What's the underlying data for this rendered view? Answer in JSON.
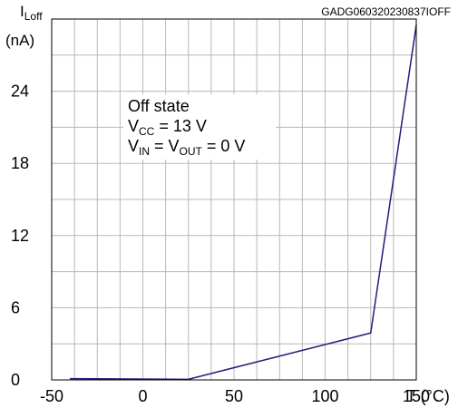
{
  "chart_data": {
    "type": "line",
    "figure_code": "GADG060320230837IOFF",
    "ylabel": {
      "main": "I",
      "sub": "Loff",
      "unit": "(nA)"
    },
    "xlabel": "T (°C)",
    "xlim": [
      -50,
      150
    ],
    "ylim": [
      0,
      30
    ],
    "xticks": [
      -50,
      0,
      50,
      100,
      150
    ],
    "yticks": [
      0,
      6,
      12,
      18,
      24
    ],
    "grid": true,
    "grid_minor_x_step": 12.5,
    "grid_y_step": 3,
    "annotation": {
      "line1": "Off state",
      "line2": {
        "a": "V",
        "a_sub": "CC",
        "b": " = 13 V"
      },
      "line3": {
        "a": "V",
        "a_sub": "IN",
        "b": " = V",
        "b_sub": "OUT",
        "c": " = 0 V"
      }
    },
    "series": [
      {
        "color": "#1f1f7a",
        "x": [
          -40,
          25,
          125,
          150
        ],
        "y": [
          0.1,
          0.05,
          3.9,
          29.5
        ]
      }
    ]
  }
}
